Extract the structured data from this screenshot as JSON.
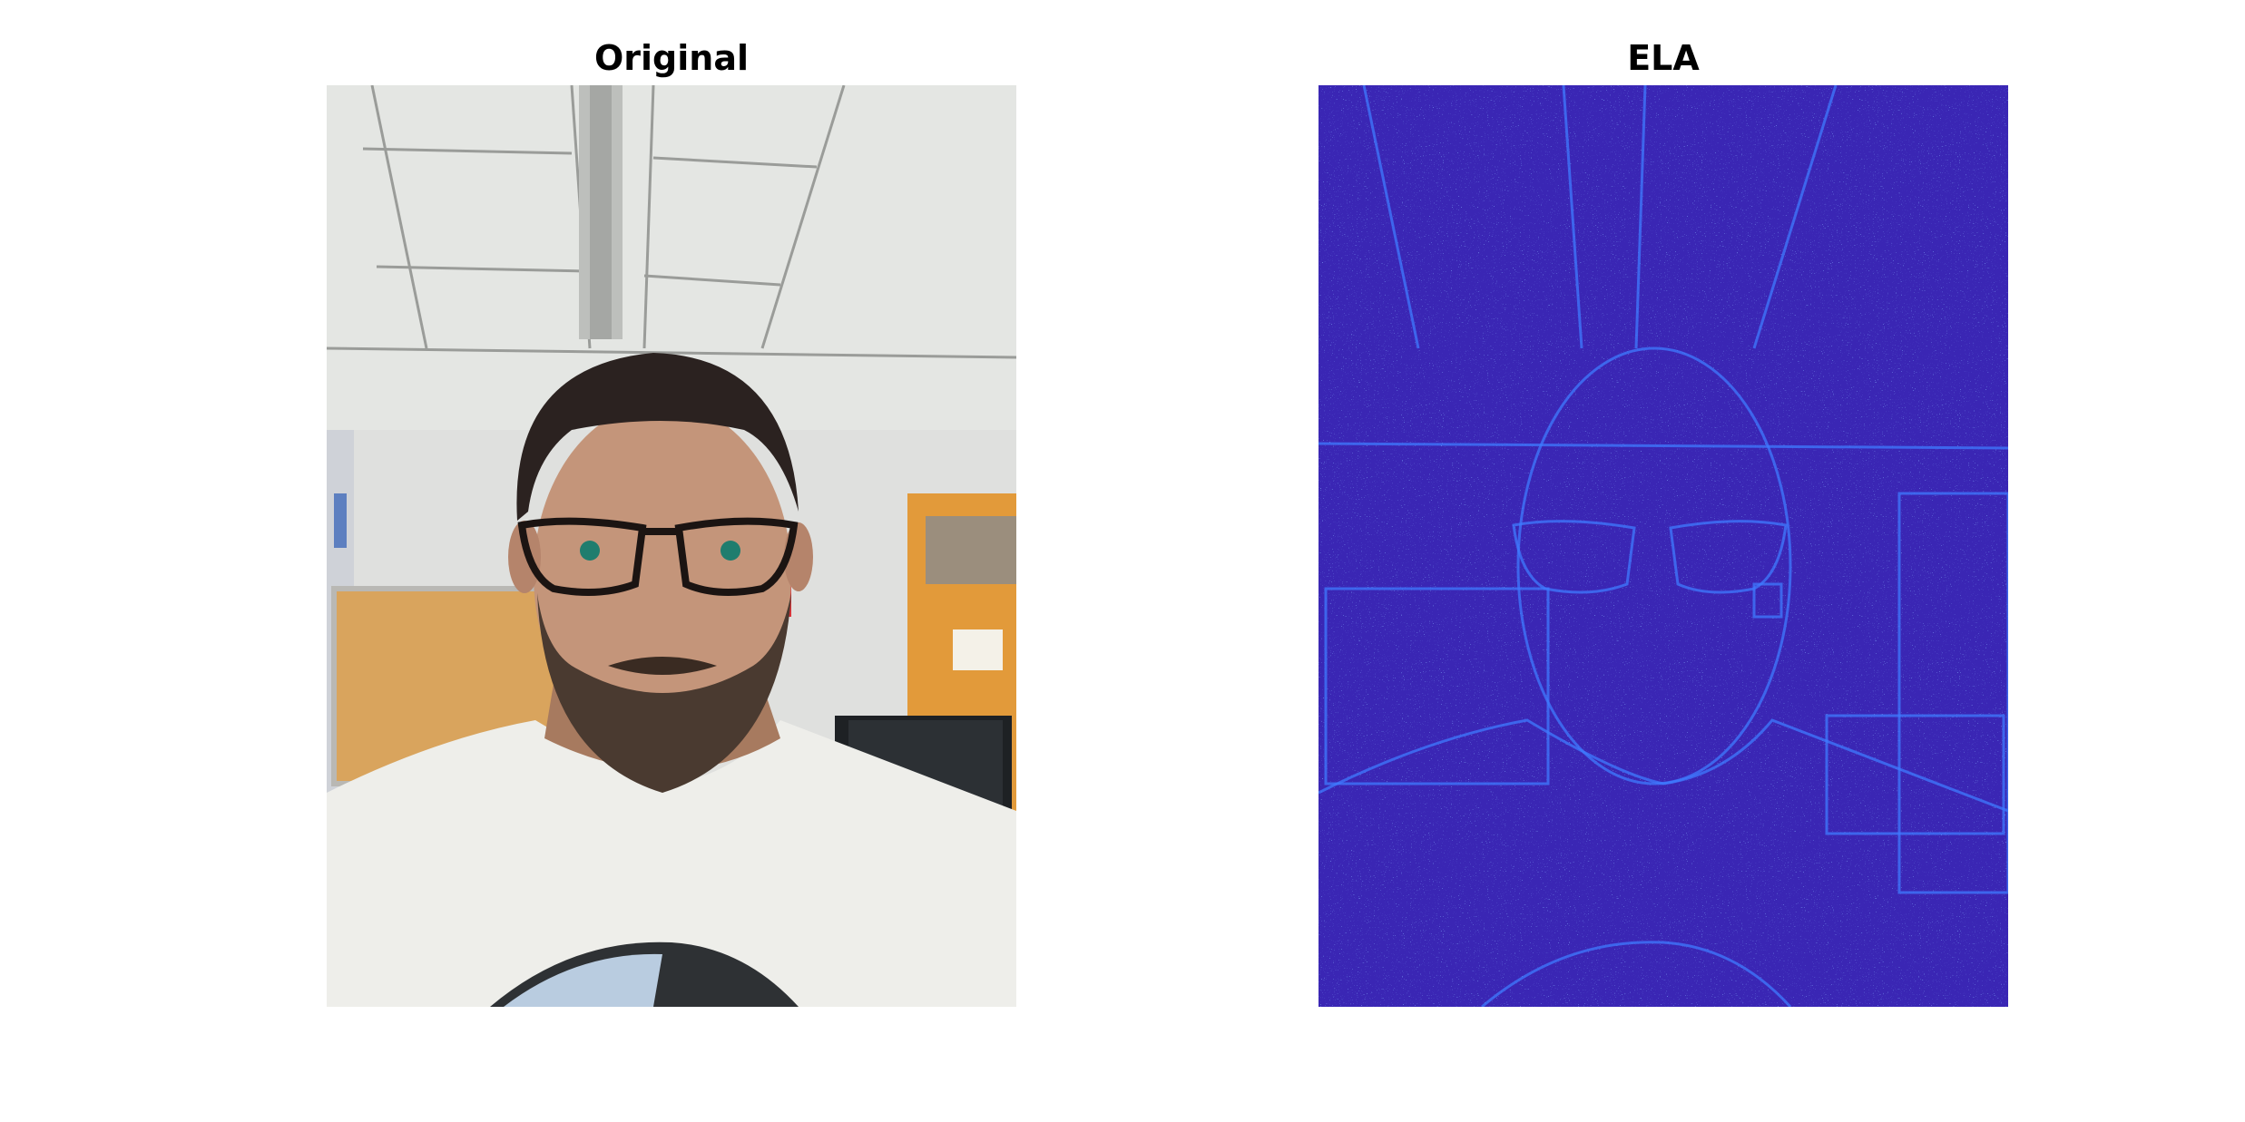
{
  "panels": [
    {
      "title": "Original",
      "kind": "photo"
    },
    {
      "title": "ELA",
      "kind": "error-level-analysis"
    }
  ],
  "colors": {
    "background": "#ffffff",
    "ela_base": "#3a26b4",
    "ela_edge": "#3f7bff"
  }
}
